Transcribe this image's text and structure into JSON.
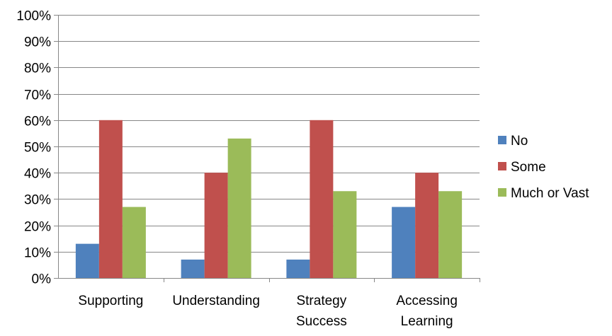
{
  "chart_data": {
    "type": "bar",
    "title": "",
    "xlabel": "",
    "ylabel": "",
    "categories": [
      [
        "Supporting"
      ],
      [
        "Understanding"
      ],
      [
        "Strategy",
        "Success"
      ],
      [
        "Accessing",
        "Learning"
      ]
    ],
    "series": [
      {
        "name": "No",
        "color": "#4F81BD",
        "values": [
          13,
          7,
          7,
          27
        ]
      },
      {
        "name": "Some",
        "color": "#C0504D",
        "values": [
          60,
          40,
          60,
          40
        ]
      },
      {
        "name": "Much or Vast",
        "color": "#9BBB59",
        "values": [
          27,
          53,
          33,
          33
        ]
      }
    ],
    "ylim": [
      0,
      100
    ],
    "yticks": [
      0,
      10,
      20,
      30,
      40,
      50,
      60,
      70,
      80,
      90,
      100
    ],
    "y_tick_suffix": "%",
    "grid": true,
    "legend_position": "right"
  }
}
